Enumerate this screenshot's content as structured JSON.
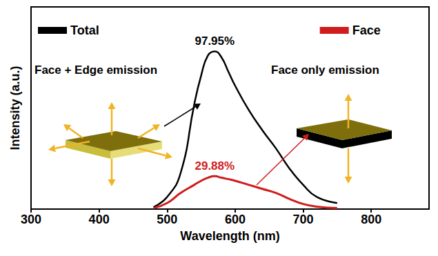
{
  "chart_data": {
    "type": "line",
    "x_label": "Wavelength (nm)",
    "y_label": "Intensity (a.u.)",
    "x": [
      480,
      500,
      520,
      540,
      550,
      560,
      570,
      580,
      590,
      600,
      620,
      640,
      660,
      680,
      700,
      720,
      750
    ],
    "series": [
      {
        "name": "Total",
        "color": "#000000",
        "annotation": "97.95%",
        "values": [
          0.01,
          0.06,
          0.18,
          0.52,
          0.66,
          0.76,
          0.78,
          0.75,
          0.68,
          0.61,
          0.49,
          0.39,
          0.3,
          0.2,
          0.12,
          0.06,
          0.03
        ]
      },
      {
        "name": "Face",
        "color": "#d01c1c",
        "annotation": "29.88%",
        "values": [
          0.005,
          0.03,
          0.08,
          0.12,
          0.14,
          0.155,
          0.163,
          0.155,
          0.148,
          0.14,
          0.12,
          0.1,
          0.08,
          0.05,
          0.025,
          0.012,
          0.005
        ]
      }
    ],
    "annotations": [
      "Face + Edge emission",
      "Face only emission"
    ],
    "xlim": [
      300,
      885
    ],
    "xticks": [
      300,
      400,
      500,
      600,
      700,
      800
    ],
    "ylim": [
      0,
      1
    ],
    "tick_labels": "x",
    "legend": "top",
    "grid": false
  }
}
